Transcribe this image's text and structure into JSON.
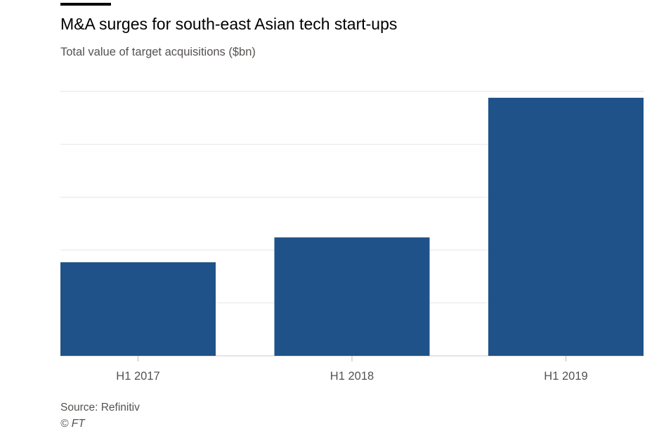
{
  "chart_data": {
    "type": "bar",
    "title": "M&A surges for south-east Asian tech start-ups",
    "subtitle": "Total value of target acquisitions ($bn)",
    "categories": [
      "H1 2017",
      "H1 2018",
      "H1 2019"
    ],
    "values": [
      1.77,
      2.24,
      4.88
    ],
    "xlabel": "",
    "ylabel": "",
    "ylim": [
      0,
      5
    ],
    "grid": true,
    "bar_color": "#1f5289",
    "source": "Source: Refinitiv",
    "credit": "© FT"
  }
}
